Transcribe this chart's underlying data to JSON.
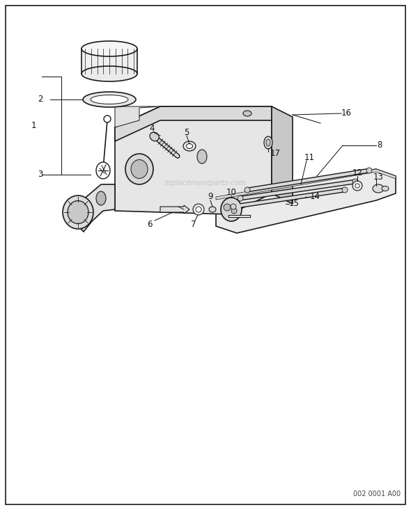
{
  "background_color": "#ffffff",
  "border_color": "#000000",
  "diagram_code": "002 0001 A00",
  "watermark": "replacementparts.com",
  "lc": "#1a1a1a",
  "fig_w": 5.9,
  "fig_h": 7.33,
  "dpi": 100
}
